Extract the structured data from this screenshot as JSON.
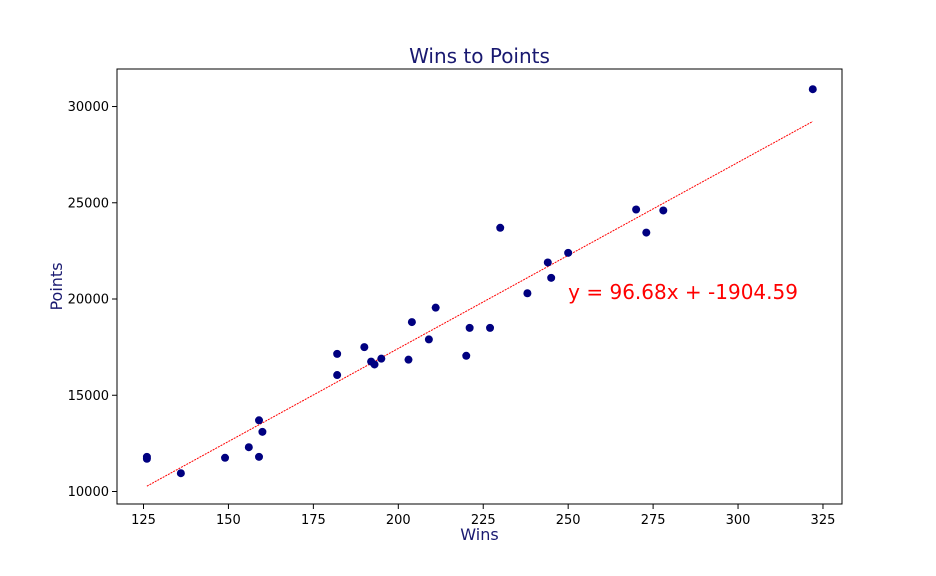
{
  "chart_data": {
    "type": "scatter",
    "title": "Wins to Points",
    "xlabel": "Wins",
    "ylabel": "Points",
    "xlim": [
      117.2,
      330.6
    ],
    "ylim": [
      9350,
      31950
    ],
    "xticks": [
      125,
      150,
      175,
      200,
      225,
      250,
      275,
      300,
      325
    ],
    "yticks": [
      10000,
      15000,
      20000,
      25000,
      30000
    ],
    "grid": false,
    "points": [
      {
        "x": 126,
        "y": 11700
      },
      {
        "x": 126,
        "y": 11800
      },
      {
        "x": 136,
        "y": 10950
      },
      {
        "x": 149,
        "y": 11750
      },
      {
        "x": 156,
        "y": 12300
      },
      {
        "x": 159,
        "y": 11800
      },
      {
        "x": 159,
        "y": 13700
      },
      {
        "x": 160,
        "y": 13100
      },
      {
        "x": 182,
        "y": 16050
      },
      {
        "x": 182,
        "y": 17150
      },
      {
        "x": 190,
        "y": 17500
      },
      {
        "x": 192,
        "y": 16750
      },
      {
        "x": 193,
        "y": 16600
      },
      {
        "x": 195,
        "y": 16900
      },
      {
        "x": 203,
        "y": 16850
      },
      {
        "x": 204,
        "y": 18800
      },
      {
        "x": 209,
        "y": 17900
      },
      {
        "x": 211,
        "y": 19550
      },
      {
        "x": 220,
        "y": 17050
      },
      {
        "x": 221,
        "y": 18500
      },
      {
        "x": 227,
        "y": 18500
      },
      {
        "x": 230,
        "y": 23700
      },
      {
        "x": 238,
        "y": 20300
      },
      {
        "x": 244,
        "y": 21900
      },
      {
        "x": 245,
        "y": 21100
      },
      {
        "x": 250,
        "y": 22400
      },
      {
        "x": 270,
        "y": 24650
      },
      {
        "x": 273,
        "y": 23450
      },
      {
        "x": 278,
        "y": 24600
      },
      {
        "x": 322,
        "y": 30900
      }
    ],
    "regression": {
      "slope": 96.68,
      "intercept": -1904.59,
      "x_start": 126,
      "x_end": 322,
      "label": "y = 96.68x + -1904.59",
      "label_x": 250,
      "label_y": 20000,
      "color": "#ff0000"
    },
    "marker_color": "#000080",
    "title_color": "#191970",
    "axis_label_color": "#191970"
  }
}
